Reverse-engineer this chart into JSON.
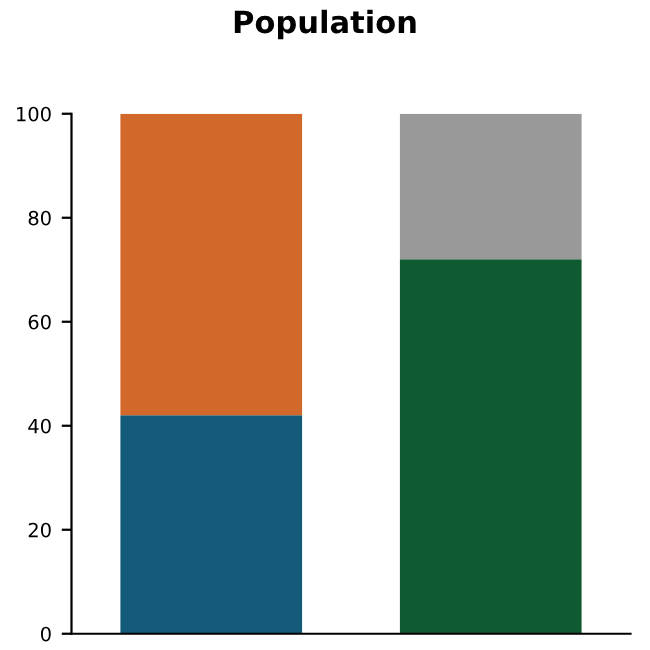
{
  "chart_data": {
    "type": "bar",
    "title": "Population",
    "stacked": true,
    "categories": [
      null,
      null
    ],
    "series": [
      {
        "colors": [
          "#135b78",
          "#0f5a30"
        ],
        "values": [
          42,
          72
        ]
      },
      {
        "colors": [
          "#d2692a",
          "#999999"
        ],
        "values": [
          58,
          28
        ]
      }
    ],
    "ylim": [
      0,
      100
    ],
    "yticks": [
      0,
      20,
      40,
      60,
      80,
      100
    ],
    "grid": false,
    "legend": false
  }
}
